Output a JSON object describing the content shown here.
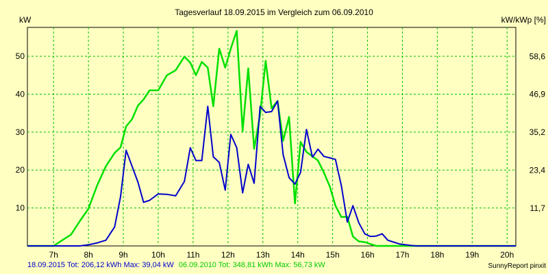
{
  "chart_data": {
    "type": "line",
    "title": "Tagesverlauf 18.09.2015 im Vergleich zum 06.09.2010",
    "ylabel_left": "kW",
    "ylabel_right": "kW/kWp [%]",
    "xlim": [
      6.25,
      20.25
    ],
    "ylim_left": [
      0,
      57.6
    ],
    "ylim_right": [
      0,
      67.6
    ],
    "x_ticks": [
      7,
      8,
      9,
      10,
      11,
      12,
      13,
      14,
      15,
      16,
      17,
      18,
      19,
      20
    ],
    "x_tick_labels": [
      "7h",
      "8h",
      "9h",
      "10h",
      "11h",
      "12h",
      "13h",
      "14h",
      "15h",
      "16h",
      "17h",
      "18h",
      "19h",
      "20h"
    ],
    "y_ticks_left": [
      10,
      20,
      30,
      40,
      50
    ],
    "y_ticks_left_labels": [
      "10",
      "20",
      "30",
      "40",
      "50"
    ],
    "y_ticks_right": [
      11.7,
      23.4,
      35.2,
      46.9,
      58.6
    ],
    "y_ticks_right_labels": [
      "11,7",
      "23,4",
      "35,2",
      "46,9",
      "58,6"
    ],
    "grid": true,
    "series": [
      {
        "name": "18.09.2015",
        "color": "#0000cc",
        "x": [
          6.25,
          7.0,
          7.25,
          7.5,
          7.75,
          8.0,
          8.25,
          8.5,
          8.75,
          8.92,
          9.08,
          9.25,
          9.42,
          9.58,
          9.75,
          10.0,
          10.25,
          10.5,
          10.75,
          10.92,
          11.08,
          11.25,
          11.42,
          11.58,
          11.75,
          11.92,
          12.08,
          12.25,
          12.42,
          12.58,
          12.75,
          12.92,
          13.08,
          13.25,
          13.42,
          13.58,
          13.75,
          13.92,
          14.08,
          14.25,
          14.42,
          14.58,
          14.75,
          14.92,
          15.08,
          15.25,
          15.42,
          15.58,
          15.75,
          15.92,
          16.08,
          16.25,
          16.42,
          16.58,
          16.75,
          16.92,
          17.08,
          17.25,
          17.42,
          17.58,
          17.75,
          17.92,
          18.08,
          18.25,
          18.42,
          18.58,
          18.75,
          18.92,
          19.08,
          19.25,
          19.42,
          19.58,
          19.75,
          19.92,
          20.08,
          20.25
        ],
        "y": [
          0,
          0,
          0,
          0,
          0,
          0.3,
          0.8,
          1.5,
          5.0,
          13.0,
          25.2,
          21.0,
          16.8,
          11.5,
          12.0,
          13.7,
          13.6,
          13.2,
          17.0,
          25.9,
          22.5,
          22.5,
          36.8,
          23.5,
          22.0,
          14.7,
          29.4,
          25.9,
          14.0,
          21.5,
          16.5,
          36.8,
          35.2,
          35.4,
          38.2,
          24.1,
          18.0,
          16.3,
          19.4,
          30.7,
          23.4,
          25.5,
          23.6,
          23.2,
          22.8,
          15.8,
          6.3,
          10.6,
          6.1,
          3.2,
          2.5,
          2.6,
          3.2,
          1.5,
          1.0,
          0.5,
          0.3,
          0.1,
          0,
          0,
          0,
          0,
          0,
          0,
          0,
          0,
          0,
          0,
          0,
          0,
          0,
          0,
          0,
          0,
          0,
          0
        ]
      },
      {
        "name": "06.09.2010",
        "color": "#00e000",
        "x": [
          6.25,
          7.0,
          7.25,
          7.5,
          7.75,
          8.0,
          8.25,
          8.5,
          8.75,
          8.92,
          9.08,
          9.25,
          9.42,
          9.58,
          9.75,
          10.0,
          10.25,
          10.5,
          10.75,
          10.92,
          11.08,
          11.25,
          11.42,
          11.58,
          11.75,
          11.92,
          12.08,
          12.25,
          12.42,
          12.58,
          12.75,
          12.92,
          13.08,
          13.25,
          13.42,
          13.58,
          13.75,
          13.92,
          14.08,
          14.25,
          14.42,
          14.58,
          14.75,
          14.92,
          15.08,
          15.25,
          15.42,
          15.58,
          15.75,
          15.92,
          16.08,
          16.25,
          16.42,
          16.58,
          16.75,
          16.92,
          17.08,
          17.25,
          17.42,
          17.58,
          17.75,
          17.92,
          18.08,
          18.25,
          18.42,
          18.58,
          18.75,
          18.92,
          19.08,
          19.25,
          19.42,
          19.58,
          19.75,
          19.92,
          20.08,
          20.25
        ],
        "y": [
          0,
          0,
          1.5,
          3.0,
          6.5,
          9.8,
          16.0,
          21.0,
          24.5,
          26.0,
          31.5,
          33.4,
          37.0,
          38.6,
          41.0,
          41.0,
          45.0,
          46.3,
          49.9,
          48.3,
          45.0,
          48.5,
          47.0,
          36.8,
          52.0,
          47.0,
          52.0,
          56.7,
          30.3,
          46.8,
          25.6,
          34.5,
          48.8,
          36.3,
          38.2,
          27.7,
          34.0,
          11.2,
          27.4,
          24.8,
          23.6,
          22.5,
          19.3,
          15.6,
          10.6,
          7.6,
          7.7,
          2.5,
          1.2,
          1.0,
          0.5,
          0,
          0,
          0,
          0,
          0,
          0,
          0,
          0,
          0,
          0,
          0,
          0,
          0,
          0,
          0,
          0,
          0,
          0,
          0,
          0,
          0,
          0,
          0,
          0,
          0
        ]
      }
    ],
    "legend": {
      "placement": "bottom",
      "s1_label": "18.09.2015 Tot: 206,12 kWh Max: 39,04 kW",
      "s2_label": "06.09.2010 Tot: 348,81 kWh Max: 56,73 kW"
    },
    "credit": "SunnyReport pinxit"
  }
}
